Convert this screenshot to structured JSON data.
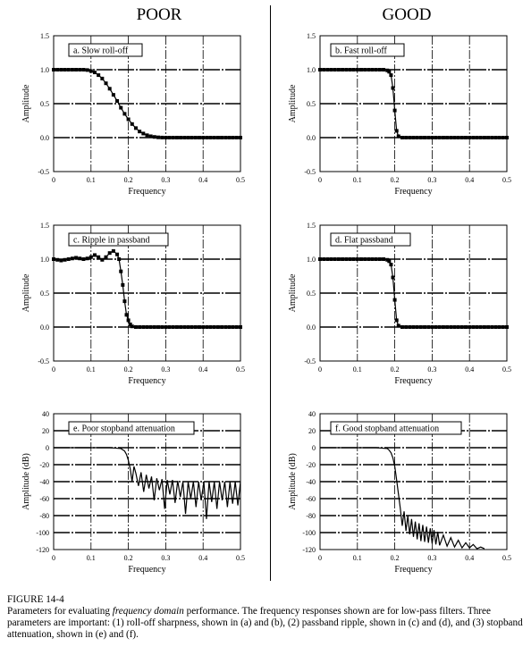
{
  "headings": {
    "left": "POOR",
    "right": "GOOD"
  },
  "caption": {
    "figure": "FIGURE 14-4",
    "text_before": "Parameters for evaluating ",
    "text_em": "frequency domain",
    "text_after": " performance.  The frequency responses shown are for low-pass filters.  Three parameters are important: (1) roll-off sharpness, shown in (a) and (b), (2) passband ripple, shown in (c) and (d), and (3) stopband attenuation, shown in (e) and (f)."
  },
  "chart_data": [
    {
      "id": "a",
      "type": "line",
      "title": "a.  Slow roll-off",
      "xlabel": "Frequency",
      "ylabel": "Amplitude",
      "xlim": [
        0,
        0.5
      ],
      "ylim": [
        -0.5,
        1.5
      ],
      "xticks": [
        "0",
        "0.1",
        "0.2",
        "0.3",
        "0.4",
        "0.5"
      ],
      "yticks": [
        "1.5",
        "1.0",
        "0.5",
        "0.0",
        "-0.5"
      ],
      "markers": true,
      "x": [
        0,
        0.01,
        0.02,
        0.03,
        0.04,
        0.05,
        0.06,
        0.07,
        0.08,
        0.09,
        0.1,
        0.11,
        0.12,
        0.13,
        0.14,
        0.15,
        0.16,
        0.17,
        0.18,
        0.19,
        0.2,
        0.21,
        0.22,
        0.23,
        0.24,
        0.25,
        0.26,
        0.27,
        0.28,
        0.29,
        0.3,
        0.31,
        0.32,
        0.33,
        0.34,
        0.35,
        0.36,
        0.37,
        0.38,
        0.39,
        0.4,
        0.41,
        0.42,
        0.43,
        0.44,
        0.45,
        0.46,
        0.47,
        0.48,
        0.49,
        0.5
      ],
      "y": [
        1,
        1,
        1,
        1,
        1,
        1,
        1,
        1,
        1,
        0.995,
        0.98,
        0.96,
        0.92,
        0.87,
        0.8,
        0.72,
        0.63,
        0.54,
        0.44,
        0.35,
        0.27,
        0.2,
        0.14,
        0.09,
        0.06,
        0.035,
        0.02,
        0.01,
        0.004,
        0.001,
        0,
        0,
        0,
        0,
        0,
        0,
        0,
        0,
        0,
        0,
        0,
        0,
        0,
        0,
        0,
        0,
        0,
        0,
        0,
        0,
        0
      ]
    },
    {
      "id": "b",
      "type": "line",
      "title": "b.  Fast roll-off",
      "xlabel": "Frequency",
      "ylabel": "Amplitude",
      "xlim": [
        0,
        0.5
      ],
      "ylim": [
        -0.5,
        1.5
      ],
      "xticks": [
        "0",
        "0.1",
        "0.2",
        "0.3",
        "0.4",
        "0.5"
      ],
      "yticks": [
        "1.5",
        "1.0",
        "0.5",
        "0.0",
        "-0.5"
      ],
      "markers": true,
      "x": [
        0,
        0.01,
        0.02,
        0.03,
        0.04,
        0.05,
        0.06,
        0.07,
        0.08,
        0.09,
        0.1,
        0.11,
        0.12,
        0.13,
        0.14,
        0.15,
        0.16,
        0.17,
        0.18,
        0.185,
        0.19,
        0.195,
        0.2,
        0.205,
        0.21,
        0.22,
        0.23,
        0.24,
        0.25,
        0.26,
        0.27,
        0.28,
        0.29,
        0.3,
        0.31,
        0.32,
        0.33,
        0.34,
        0.35,
        0.36,
        0.37,
        0.38,
        0.39,
        0.4,
        0.41,
        0.42,
        0.43,
        0.44,
        0.45,
        0.46,
        0.47,
        0.48,
        0.49,
        0.5
      ],
      "y": [
        1,
        1,
        1,
        1,
        1,
        1,
        1,
        1,
        1,
        1,
        1,
        1,
        1,
        1,
        1,
        1,
        1,
        1,
        0.99,
        0.97,
        0.92,
        0.73,
        0.4,
        0.1,
        0.02,
        0,
        0,
        0,
        0,
        0,
        0,
        0,
        0,
        0,
        0,
        0,
        0,
        0,
        0,
        0,
        0,
        0,
        0,
        0,
        0,
        0,
        0,
        0,
        0,
        0,
        0,
        0,
        0,
        0
      ]
    },
    {
      "id": "c",
      "type": "line",
      "title": "c.  Ripple in passband",
      "xlabel": "Frequency",
      "ylabel": "Amplitude",
      "xlim": [
        0,
        0.5
      ],
      "ylim": [
        -0.5,
        1.5
      ],
      "xticks": [
        "0",
        "0.1",
        "0.2",
        "0.3",
        "0.4",
        "0.5"
      ],
      "yticks": [
        "1.5",
        "1.0",
        "0.5",
        "0.0",
        "-0.5"
      ],
      "markers": true,
      "x": [
        0,
        0.01,
        0.02,
        0.03,
        0.04,
        0.05,
        0.06,
        0.07,
        0.08,
        0.09,
        0.1,
        0.11,
        0.12,
        0.13,
        0.14,
        0.15,
        0.16,
        0.17,
        0.175,
        0.18,
        0.185,
        0.19,
        0.195,
        0.2,
        0.205,
        0.21,
        0.22,
        0.23,
        0.24,
        0.25,
        0.26,
        0.27,
        0.28,
        0.29,
        0.3,
        0.31,
        0.32,
        0.33,
        0.34,
        0.35,
        0.36,
        0.37,
        0.38,
        0.39,
        0.4,
        0.41,
        0.42,
        0.43,
        0.44,
        0.45,
        0.46,
        0.47,
        0.48,
        0.49,
        0.5
      ],
      "y": [
        1,
        0.99,
        0.98,
        0.99,
        1,
        1.01,
        1.02,
        1.01,
        1,
        1.01,
        1.03,
        1.06,
        1.03,
        0.99,
        1.03,
        1.09,
        1.12,
        1.07,
        1.0,
        0.82,
        0.62,
        0.38,
        0.18,
        0.1,
        0.04,
        0.01,
        0,
        0,
        0,
        0,
        0,
        0,
        0,
        0,
        0,
        0,
        0,
        0,
        0,
        0,
        0,
        0,
        0,
        0,
        0,
        0,
        0,
        0,
        0,
        0,
        0,
        0,
        0,
        0,
        0
      ]
    },
    {
      "id": "d",
      "type": "line",
      "title": "d.  Flat passband",
      "xlabel": "Frequency",
      "ylabel": "Amplitude",
      "xlim": [
        0,
        0.5
      ],
      "ylim": [
        -0.5,
        1.5
      ],
      "xticks": [
        "0",
        "0.1",
        "0.2",
        "0.3",
        "0.4",
        "0.5"
      ],
      "yticks": [
        "1.5",
        "1.0",
        "0.5",
        "0.0",
        "-0.5"
      ],
      "markers": true,
      "x": [
        0,
        0.01,
        0.02,
        0.03,
        0.04,
        0.05,
        0.06,
        0.07,
        0.08,
        0.09,
        0.1,
        0.11,
        0.12,
        0.13,
        0.14,
        0.15,
        0.16,
        0.17,
        0.18,
        0.185,
        0.19,
        0.195,
        0.2,
        0.205,
        0.21,
        0.22,
        0.23,
        0.24,
        0.25,
        0.26,
        0.27,
        0.28,
        0.29,
        0.3,
        0.31,
        0.32,
        0.33,
        0.34,
        0.35,
        0.36,
        0.37,
        0.38,
        0.39,
        0.4,
        0.41,
        0.42,
        0.43,
        0.44,
        0.45,
        0.46,
        0.47,
        0.48,
        0.49,
        0.5
      ],
      "y": [
        1,
        1,
        1,
        1,
        1,
        1,
        1,
        1,
        1,
        1,
        1,
        1,
        1,
        1,
        1,
        1,
        1,
        1,
        0.99,
        0.97,
        0.92,
        0.73,
        0.4,
        0.1,
        0.02,
        0,
        0,
        0,
        0,
        0,
        0,
        0,
        0,
        0,
        0,
        0,
        0,
        0,
        0,
        0,
        0,
        0,
        0,
        0,
        0,
        0,
        0,
        0,
        0,
        0,
        0,
        0,
        0,
        0
      ]
    },
    {
      "id": "e",
      "type": "line",
      "title": "e.  Poor stopband attenuation",
      "xlabel": "Frequency",
      "ylabel": "Amplitude (dB)",
      "xlim": [
        0,
        0.5
      ],
      "ylim": [
        -120,
        40
      ],
      "xticks": [
        "0",
        "0.1",
        "0.2",
        "0.3",
        "0.4",
        "0.5"
      ],
      "yticks": [
        "40",
        "20",
        "0",
        "-20",
        "-40",
        "-60",
        "-80",
        "-100",
        "-120"
      ],
      "markers": false,
      "x": [
        0,
        0.05,
        0.1,
        0.15,
        0.18,
        0.19,
        0.195,
        0.2,
        0.205,
        0.21,
        0.215,
        0.22,
        0.227,
        0.234,
        0.241,
        0.248,
        0.255,
        0.262,
        0.269,
        0.276,
        0.283,
        0.29,
        0.297,
        0.304,
        0.311,
        0.318,
        0.325,
        0.332,
        0.339,
        0.346,
        0.353,
        0.36,
        0.367,
        0.374,
        0.381,
        0.388,
        0.395,
        0.402,
        0.409,
        0.416,
        0.423,
        0.43,
        0.437,
        0.444,
        0.451,
        0.458,
        0.465,
        0.472,
        0.479,
        0.486,
        0.493,
        0.5
      ],
      "y": [
        0,
        0,
        0,
        0,
        -1,
        -4,
        -8,
        -15,
        -25,
        -40,
        -22,
        -30,
        -45,
        -29,
        -52,
        -32,
        -48,
        -34,
        -62,
        -36,
        -50,
        -37,
        -72,
        -38,
        -55,
        -38,
        -65,
        -39,
        -58,
        -40,
        -78,
        -40,
        -60,
        -40,
        -70,
        -40,
        -62,
        -40,
        -84,
        -40,
        -64,
        -40,
        -72,
        -40,
        -62,
        -40,
        -70,
        -40,
        -66,
        -40,
        -68,
        -40
      ]
    },
    {
      "id": "f",
      "type": "line",
      "title": "f.  Good stopband attenuation",
      "xlabel": "Frequency",
      "ylabel": "Amplitude (dB)",
      "xlim": [
        0,
        0.5
      ],
      "ylim": [
        -120,
        40
      ],
      "xticks": [
        "0",
        "0.1",
        "0.2",
        "0.3",
        "0.4",
        "0.5"
      ],
      "yticks": [
        "40",
        "20",
        "0",
        "-20",
        "-40",
        "-60",
        "-80",
        "-100",
        "-120"
      ],
      "markers": false,
      "x": [
        0,
        0.05,
        0.1,
        0.15,
        0.18,
        0.185,
        0.19,
        0.195,
        0.2,
        0.205,
        0.21,
        0.215,
        0.22,
        0.225,
        0.23,
        0.235,
        0.24,
        0.245,
        0.25,
        0.255,
        0.26,
        0.265,
        0.27,
        0.275,
        0.28,
        0.285,
        0.29,
        0.295,
        0.3,
        0.305,
        0.31,
        0.315,
        0.32,
        0.33,
        0.34,
        0.35,
        0.36,
        0.37,
        0.38,
        0.39,
        0.4,
        0.41,
        0.42,
        0.43,
        0.44
      ],
      "y": [
        0,
        0,
        0,
        0,
        -1,
        -3,
        -6,
        -12,
        -22,
        -38,
        -55,
        -72,
        -92,
        -75,
        -98,
        -80,
        -102,
        -84,
        -105,
        -87,
        -108,
        -89,
        -110,
        -91,
        -111,
        -93,
        -112,
        -95,
        -113,
        -97,
        -114,
        -99,
        -115,
        -103,
        -116,
        -106,
        -117,
        -109,
        -118,
        -112,
        -118,
        -114,
        -119,
        -117,
        -119
      ]
    }
  ]
}
